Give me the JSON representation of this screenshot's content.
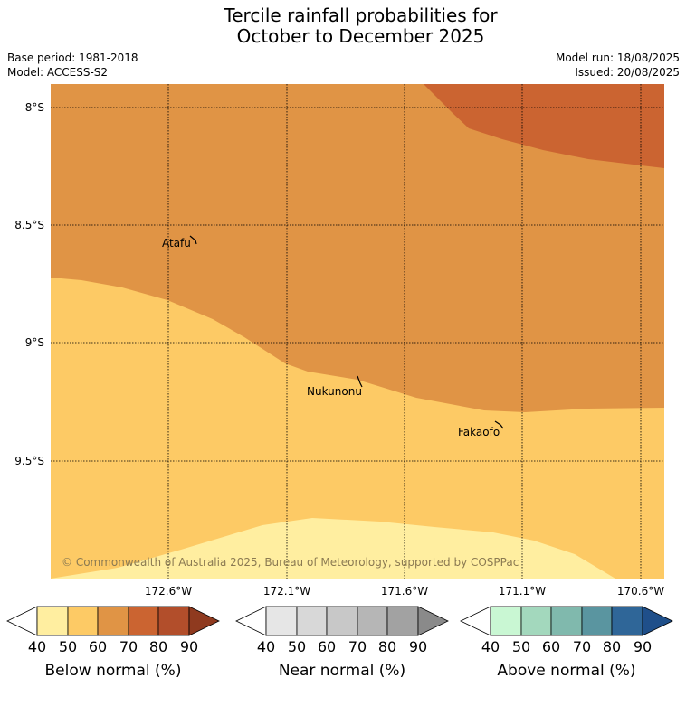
{
  "header": {
    "title_line1": "Tercile rainfall probabilities for",
    "title_line2": "October to December 2025",
    "base_period": "Base period: 1981-2018",
    "model": "Model: ACCESS-S2",
    "model_run": "Model run: 18/08/2025",
    "issued": "Issued: 20/08/2025"
  },
  "map": {
    "lat_labels": [
      "8°S",
      "8.5°S",
      "9°S",
      "9.5°S"
    ],
    "lon_labels": [
      "172.6°W",
      "172.1°W",
      "171.6°W",
      "171.1°W",
      "170.6°W"
    ],
    "places": [
      "Atafu",
      "Nukunonu",
      "Fakaofo"
    ],
    "copyright": "© Commonwealth of Australia 2025, Bureau of Meteorology, supported by COSPPac",
    "colors": {
      "below_40_50": "#ffeea0",
      "below_50_60": "#fdca65",
      "below_60_70": "#e09445",
      "below_70_80": "#cb6431"
    }
  },
  "colorbars": [
    {
      "label": "Below normal (%)",
      "ticks": [
        "40",
        "50",
        "60",
        "70",
        "80",
        "90"
      ],
      "colors": [
        "#ffeea0",
        "#fdca65",
        "#e09445",
        "#cb6431",
        "#b24e2b",
        "#8f3a1f"
      ]
    },
    {
      "label": "Near normal (%)",
      "ticks": [
        "40",
        "50",
        "60",
        "70",
        "80",
        "90"
      ],
      "colors": [
        "#e6e6e6",
        "#d8d8d8",
        "#c8c8c8",
        "#b6b6b6",
        "#a2a2a2",
        "#8a8a8a"
      ]
    },
    {
      "label": "Above normal (%)",
      "ticks": [
        "40",
        "50",
        "60",
        "70",
        "80",
        "90"
      ],
      "colors": [
        "#c9f7d3",
        "#a3d8bd",
        "#80b9ad",
        "#5a95a0",
        "#2f6698",
        "#1f4f8a"
      ]
    }
  ]
}
